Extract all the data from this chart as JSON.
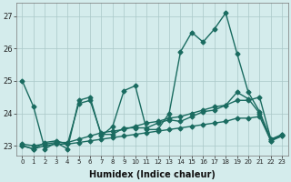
{
  "xlabel": "Humidex (Indice chaleur)",
  "ylabel": "",
  "background_color": "#d4ecec",
  "grid_color": "#aac8c8",
  "line_color": "#1a6b60",
  "xlim": [
    -0.5,
    23.5
  ],
  "ylim": [
    22.7,
    27.4
  ],
  "yticks": [
    23,
    24,
    25,
    26,
    27
  ],
  "xticks": [
    0,
    1,
    2,
    3,
    4,
    5,
    6,
    7,
    8,
    9,
    10,
    11,
    12,
    13,
    14,
    15,
    16,
    17,
    18,
    19,
    20,
    21,
    22,
    23
  ],
  "series": [
    [
      25.0,
      24.2,
      22.9,
      23.1,
      22.9,
      24.4,
      24.5,
      23.3,
      23.6,
      24.7,
      24.85,
      23.5,
      23.5,
      24.0,
      25.9,
      26.5,
      26.2,
      26.6,
      27.1,
      25.85,
      24.65,
      24.05,
      23.2,
      23.3
    ],
    [
      23.0,
      22.9,
      23.1,
      23.15,
      23.05,
      24.3,
      24.4,
      23.35,
      23.35,
      23.55,
      23.55,
      23.55,
      23.7,
      23.8,
      23.75,
      23.9,
      24.05,
      24.1,
      24.25,
      24.65,
      24.45,
      24.0,
      23.15,
      23.35
    ],
    [
      23.0,
      22.9,
      23.0,
      23.05,
      23.05,
      23.1,
      23.15,
      23.2,
      23.25,
      23.3,
      23.35,
      23.4,
      23.45,
      23.5,
      23.55,
      23.6,
      23.65,
      23.7,
      23.75,
      23.85,
      23.85,
      23.9,
      23.15,
      23.3
    ],
    [
      23.05,
      23.0,
      23.05,
      23.1,
      23.1,
      23.2,
      23.3,
      23.4,
      23.45,
      23.5,
      23.6,
      23.7,
      23.75,
      23.85,
      23.9,
      24.0,
      24.1,
      24.2,
      24.25,
      24.4,
      24.4,
      24.5,
      23.2,
      23.35
    ]
  ],
  "marker": "D",
  "markersize": 2.5,
  "linewidth": 1.0
}
